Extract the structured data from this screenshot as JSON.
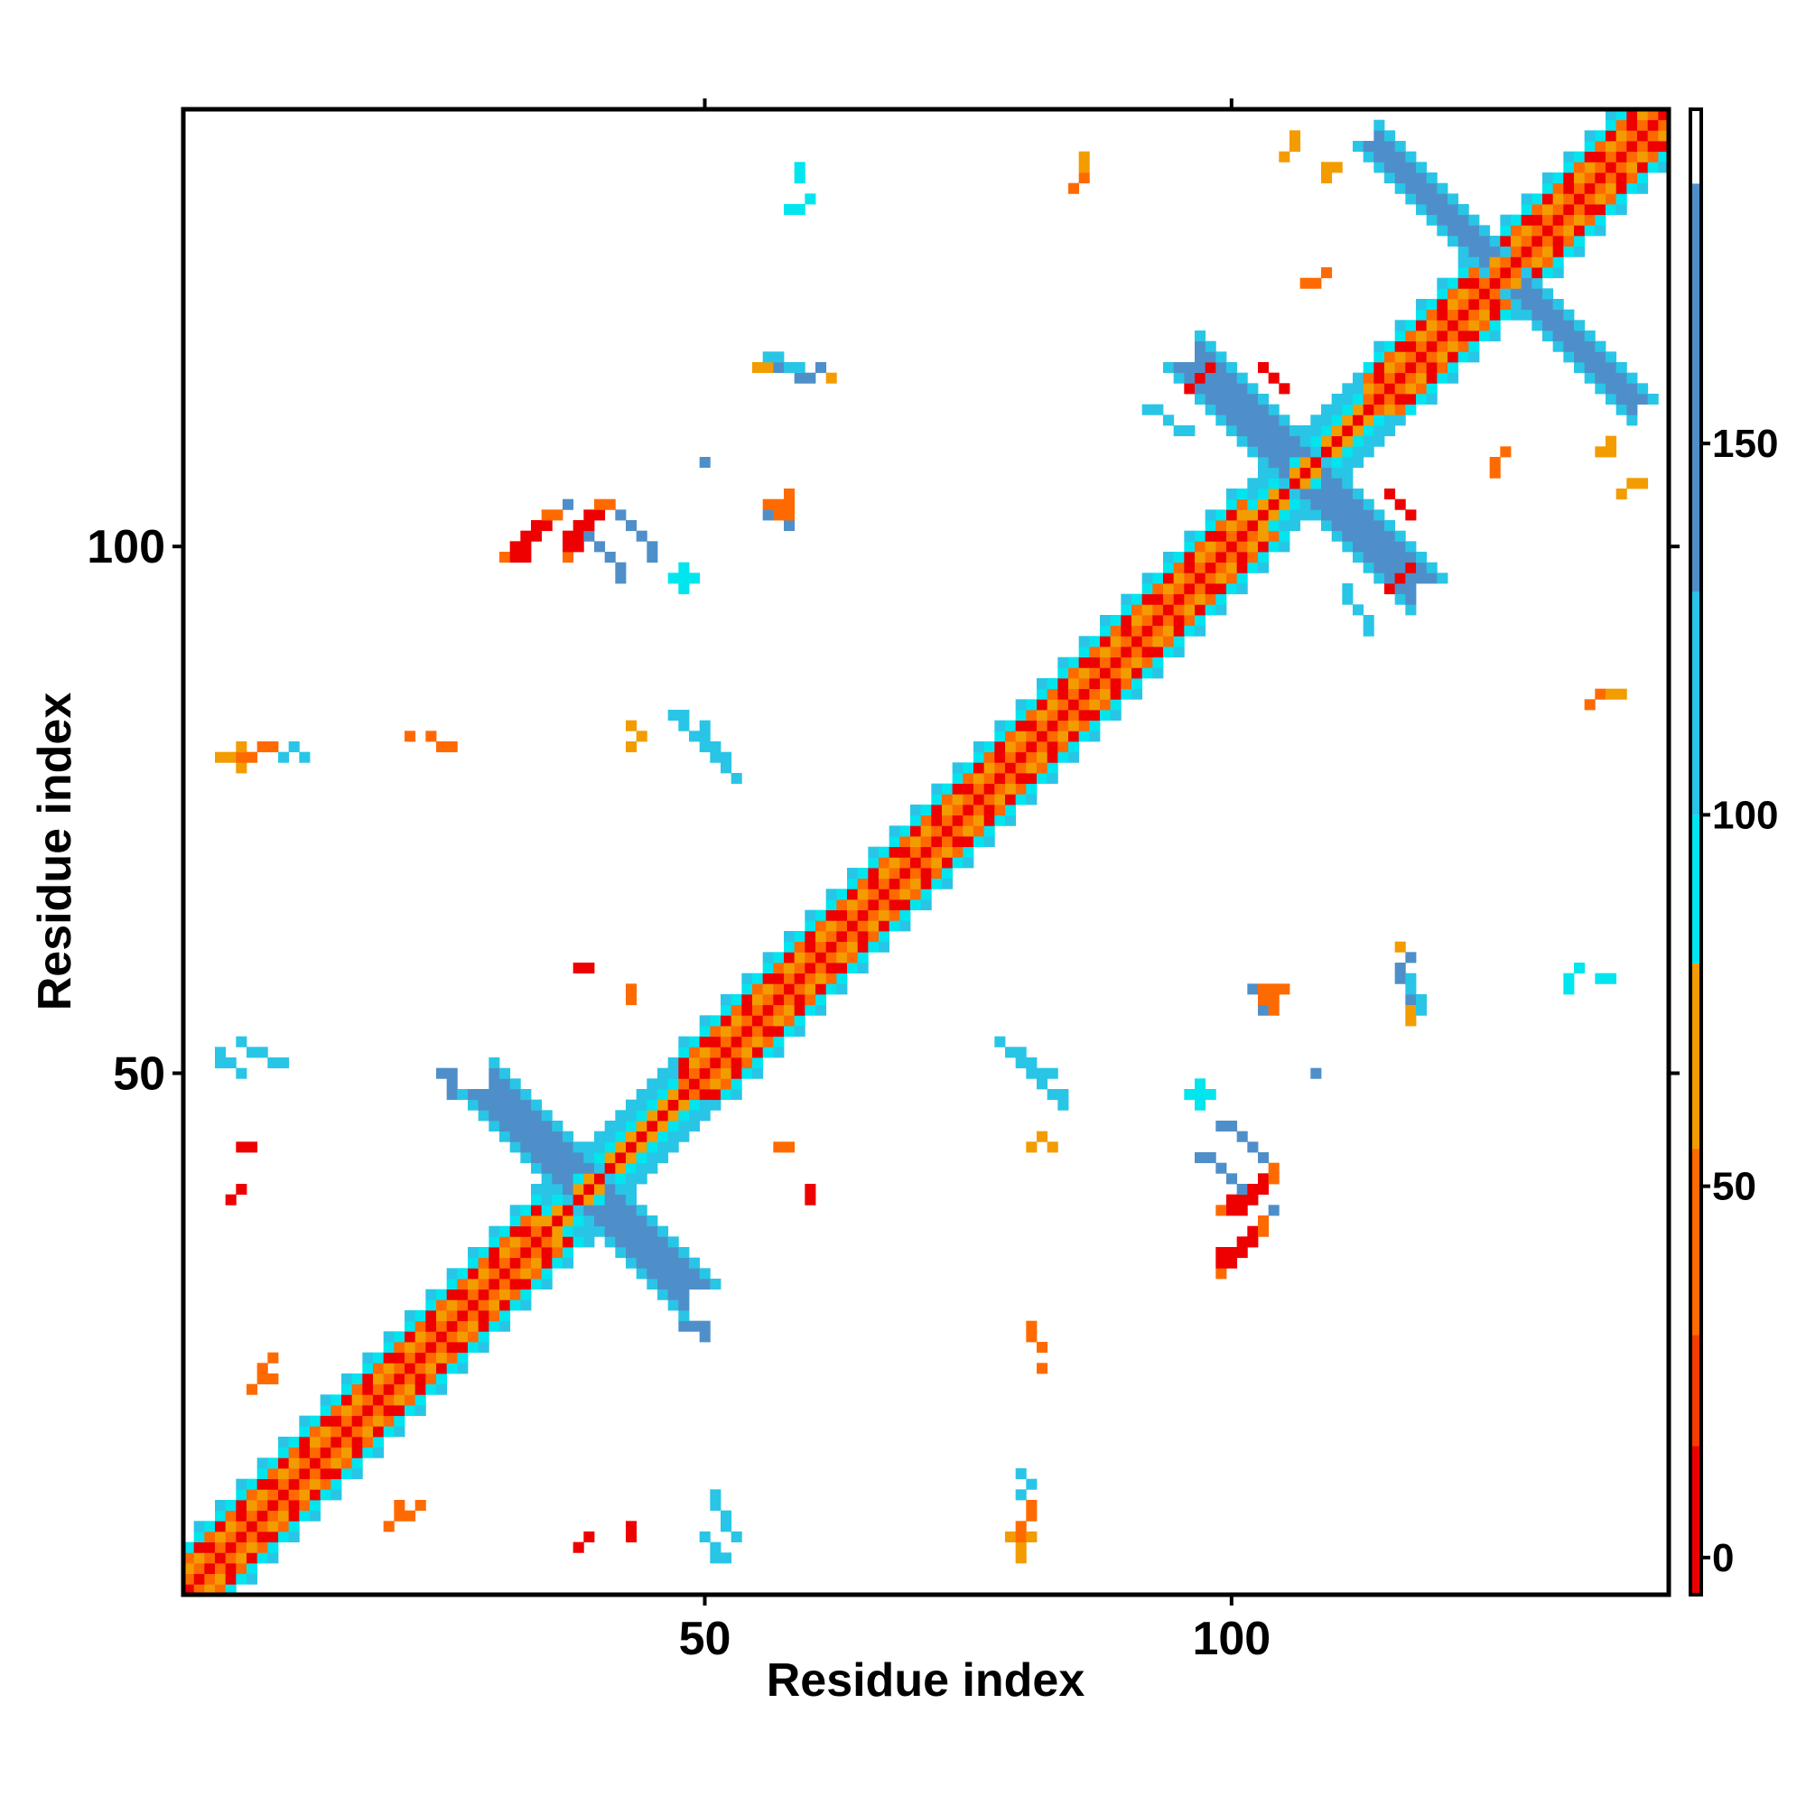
{
  "chart_data": {
    "type": "heatmap",
    "title": "",
    "xlabel": "Residue index",
    "ylabel": "Residue index",
    "n_residues": 141,
    "xlim": [
      1,
      141
    ],
    "ylim": [
      1,
      141
    ],
    "x_ticks": [
      50,
      100
    ],
    "y_ticks": [
      50,
      100
    ],
    "grid": false,
    "legend": "colorbar-right",
    "colorbar": {
      "range": [
        -5,
        195
      ],
      "ticks": [
        0,
        50,
        100,
        150
      ],
      "bands": [
        {
          "from": -5,
          "to": 15,
          "color": "#ee0000"
        },
        {
          "from": 15,
          "to": 30,
          "color": "#f53d00"
        },
        {
          "from": 30,
          "to": 55,
          "color": "#ff6a00"
        },
        {
          "from": 55,
          "to": 80,
          "color": "#f39c00"
        },
        {
          "from": 80,
          "to": 100,
          "color": "#00e5ee"
        },
        {
          "from": 100,
          "to": 130,
          "color": "#29c5e6"
        },
        {
          "from": 130,
          "to": 185,
          "color": "#4f8fc9"
        },
        {
          "from": 185,
          "to": 195,
          "color": "#ffffff"
        }
      ]
    },
    "value_colors": {
      "8": "#ee0000",
      "40": "#ff6a00",
      "62": "#f39c00",
      "90": "#00e5ee",
      "115": "#29c5e6",
      "150": "#4f8fc9"
    },
    "diagonal": {
      "from": 1,
      "to": 141
    },
    "regions": [
      {
        "name": "helix-1",
        "kind": "helix",
        "start": 1,
        "end": 34
      },
      {
        "name": "helix-2",
        "kind": "helix",
        "start": 48,
        "end": 101
      },
      {
        "name": "helix-3",
        "kind": "helix",
        "start": 113,
        "end": 141
      },
      {
        "name": "x-N",
        "kind": "cross",
        "center": [
          39,
          39
        ],
        "arm": 9,
        "width": 3,
        "value": 150
      },
      {
        "name": "x-C",
        "kind": "cross",
        "center": [
          107,
          107
        ],
        "arm": 10,
        "width": 3,
        "value": 150
      },
      {
        "name": "x-T",
        "kind": "cross",
        "center": [
          126,
          126
        ],
        "arm": 12,
        "width": 2,
        "value": 150
      },
      {
        "name": "p1",
        "kind": "patch",
        "points": [
          [
            32,
            100
          ],
          [
            33,
            101
          ],
          [
            34,
            101
          ],
          [
            33,
            100
          ],
          [
            32,
            99
          ],
          [
            34,
            102
          ],
          [
            35,
            102
          ],
          [
            33,
            99
          ]
        ],
        "value": 8
      },
      {
        "name": "p1s",
        "kind": "patch",
        "points": [
          [
            31,
            99
          ],
          [
            35,
            103
          ],
          [
            36,
            103
          ]
        ],
        "value": 40
      },
      {
        "name": "p2",
        "kind": "patch",
        "points": [
          [
            38,
            102
          ],
          [
            39,
            101
          ],
          [
            40,
            100
          ],
          [
            41,
            99
          ],
          [
            42,
            98
          ],
          [
            42,
            97
          ],
          [
            39,
            103
          ],
          [
            37,
            104
          ]
        ],
        "value": 150
      },
      {
        "name": "p3",
        "kind": "patch",
        "points": [
          [
            47,
            84
          ],
          [
            48,
            83
          ],
          [
            49,
            82
          ],
          [
            50,
            81
          ],
          [
            51,
            80
          ],
          [
            48,
            84
          ]
        ],
        "value": 115
      },
      {
        "name": "p4",
        "kind": "patch",
        "points": [
          [
            57,
            117
          ],
          [
            58,
            117
          ],
          [
            59,
            116
          ],
          [
            60,
            116
          ],
          [
            61,
            117
          ]
        ],
        "value": 150
      },
      {
        "name": "p5",
        "kind": "patch",
        "points": [
          [
            56,
            117
          ],
          [
            55,
            117
          ],
          [
            62,
            116
          ]
        ],
        "value": 62
      },
      {
        "name": "p6",
        "kind": "patch",
        "points": [
          [
            57,
            104
          ],
          [
            58,
            103
          ],
          [
            57,
            103
          ],
          [
            56,
            104
          ]
        ],
        "value": 40
      },
      {
        "name": "p7",
        "kind": "patch",
        "points": [
          [
            6,
            80
          ],
          [
            7,
            80
          ],
          [
            8,
            81
          ],
          [
            9,
            81
          ]
        ],
        "value": 40
      },
      {
        "name": "p7s",
        "kind": "patch",
        "points": [
          [
            10,
            80
          ],
          [
            11,
            81
          ],
          [
            12,
            80
          ]
        ],
        "value": 115
      },
      {
        "name": "p8",
        "kind": "patch",
        "points": [
          [
            6,
            53
          ],
          [
            7,
            52
          ],
          [
            8,
            52
          ],
          [
            9,
            51
          ],
          [
            10,
            51
          ]
        ],
        "value": 115
      },
      {
        "name": "p9",
        "kind": "patch",
        "points": [
          [
            6,
            43
          ],
          [
            7,
            43
          ]
        ],
        "value": 8
      },
      {
        "name": "p10",
        "kind": "patch",
        "points": [
          [
            8,
            22
          ],
          [
            9,
            23
          ],
          [
            9,
            21
          ],
          [
            8,
            21
          ]
        ],
        "value": 40
      },
      {
        "name": "p11",
        "kind": "patch",
        "points": [
          [
            20,
            7
          ],
          [
            21,
            8
          ],
          [
            22,
            8
          ]
        ],
        "value": 40
      },
      {
        "name": "p12",
        "kind": "patch",
        "points": [
          [
            38,
            5
          ],
          [
            39,
            6
          ]
        ],
        "value": 8
      },
      {
        "name": "p13",
        "kind": "patch",
        "points": [
          [
            50,
            6
          ],
          [
            51,
            5
          ],
          [
            51,
            4
          ],
          [
            52,
            4
          ]
        ],
        "value": 115
      },
      {
        "name": "p14",
        "kind": "patch",
        "points": [
          [
            80,
            5
          ],
          [
            81,
            6
          ],
          [
            80,
            4
          ],
          [
            79,
            6
          ]
        ],
        "value": 62
      },
      {
        "name": "p15",
        "kind": "patch",
        "points": [
          [
            78,
            53
          ],
          [
            79,
            52
          ],
          [
            80,
            52
          ],
          [
            81,
            51
          ],
          [
            82,
            50
          ],
          [
            83,
            50
          ]
        ],
        "value": 115
      },
      {
        "name": "p16",
        "kind": "patch",
        "points": [
          [
            81,
            43
          ],
          [
            82,
            44
          ],
          [
            83,
            43
          ]
        ],
        "value": 62
      },
      {
        "name": "p17",
        "kind": "patch",
        "points": [
          [
            81,
            26
          ],
          [
            81,
            25
          ]
        ],
        "value": 40
      },
      {
        "name": "p18",
        "kind": "patch",
        "points": [
          [
            99,
            45
          ],
          [
            100,
            45
          ],
          [
            101,
            44
          ],
          [
            102,
            43
          ],
          [
            103,
            42
          ]
        ],
        "value": 150
      },
      {
        "name": "p19",
        "kind": "patch",
        "points": [
          [
            100,
            38
          ],
          [
            101,
            38
          ],
          [
            101,
            37
          ],
          [
            102,
            39
          ],
          [
            103,
            39
          ],
          [
            102,
            38
          ],
          [
            100,
            37
          ],
          [
            103,
            40
          ]
        ],
        "value": 8
      },
      {
        "name": "p19s",
        "kind": "patch",
        "points": [
          [
            99,
            37
          ],
          [
            104,
            40
          ],
          [
            104,
            41
          ]
        ],
        "value": 40
      },
      {
        "name": "p20",
        "kind": "patch",
        "points": [
          [
            103,
            57
          ],
          [
            104,
            58
          ],
          [
            105,
            58
          ],
          [
            104,
            57
          ]
        ],
        "value": 40
      },
      {
        "name": "p20s",
        "kind": "patch",
        "points": [
          [
            102,
            58
          ],
          [
            103,
            56
          ]
        ],
        "value": 150
      },
      {
        "name": "p21",
        "kind": "patch",
        "points": [
          [
            117,
            58
          ],
          [
            118,
            57
          ],
          [
            117,
            59
          ],
          [
            118,
            56
          ]
        ],
        "value": 115
      },
      {
        "name": "p22",
        "kind": "patch",
        "points": [
          [
            97,
            48
          ],
          [
            98,
            48
          ],
          [
            96,
            48
          ],
          [
            97,
            47
          ]
        ],
        "value": 90
      },
      {
        "name": "p23",
        "kind": "patch",
        "points": [
          [
            135,
            59
          ],
          [
            136,
            59
          ]
        ],
        "value": 90
      },
      {
        "name": "p24",
        "kind": "patch",
        "points": [
          [
            136,
            86
          ],
          [
            137,
            86
          ]
        ],
        "value": 62
      },
      {
        "name": "p25",
        "kind": "patch",
        "points": [
          [
            137,
            105
          ],
          [
            138,
            106
          ],
          [
            139,
            106
          ]
        ],
        "value": 62
      },
      {
        "name": "p26",
        "kind": "patch",
        "points": [
          [
            115,
            105
          ],
          [
            116,
            104
          ],
          [
            117,
            103
          ]
        ],
        "value": 8
      },
      {
        "name": "p27",
        "kind": "patch",
        "points": [
          [
            96,
            115
          ],
          [
            97,
            116
          ],
          [
            98,
            117
          ]
        ],
        "value": 8
      },
      {
        "name": "p28",
        "kind": "patch",
        "points": [
          [
            107,
            125
          ],
          [
            108,
            125
          ],
          [
            109,
            126
          ]
        ],
        "value": 40
      },
      {
        "name": "p29",
        "kind": "patch",
        "points": [
          [
            93,
            113
          ],
          [
            92,
            113
          ],
          [
            94,
            112
          ],
          [
            95,
            111
          ],
          [
            96,
            111
          ]
        ],
        "value": 115
      },
      {
        "name": "p30",
        "kind": "patch",
        "points": [
          [
            109,
            135
          ],
          [
            110,
            136
          ],
          [
            109,
            136
          ]
        ],
        "value": 62
      },
      {
        "name": "p31",
        "kind": "patch",
        "points": [
          [
            85,
            134
          ],
          [
            86,
            135
          ]
        ],
        "value": 40
      },
      {
        "name": "p32",
        "kind": "patch",
        "points": [
          [
            60,
            133
          ],
          [
            59,
            132
          ],
          [
            58,
            132
          ]
        ],
        "value": 90
      },
      {
        "name": "p33",
        "kind": "patch",
        "points": [
          [
            49,
            97
          ],
          [
            48,
            97
          ],
          [
            48,
            96
          ]
        ],
        "value": 90
      },
      {
        "name": "p34",
        "kind": "patch",
        "points": [
          [
            22,
            82
          ],
          [
            24,
            82
          ]
        ],
        "value": 40
      },
      {
        "name": "p35",
        "kind": "patch",
        "points": [
          [
            25,
            50
          ],
          [
            26,
            50
          ]
        ],
        "value": 150
      },
      {
        "name": "p36",
        "kind": "patch",
        "points": [
          [
            57,
            43
          ],
          [
            58,
            43
          ]
        ],
        "value": 40
      },
      {
        "name": "p37",
        "kind": "patch",
        "points": [
          [
            48,
            26
          ],
          [
            49,
            26
          ]
        ],
        "value": 150
      },
      {
        "name": "p38",
        "kind": "patch",
        "points": [
          [
            38,
            60
          ],
          [
            39,
            60
          ]
        ],
        "value": 8
      },
      {
        "name": "p39",
        "kind": "patch",
        "points": [
          [
            108,
            50
          ]
        ],
        "value": 150
      }
    ]
  }
}
